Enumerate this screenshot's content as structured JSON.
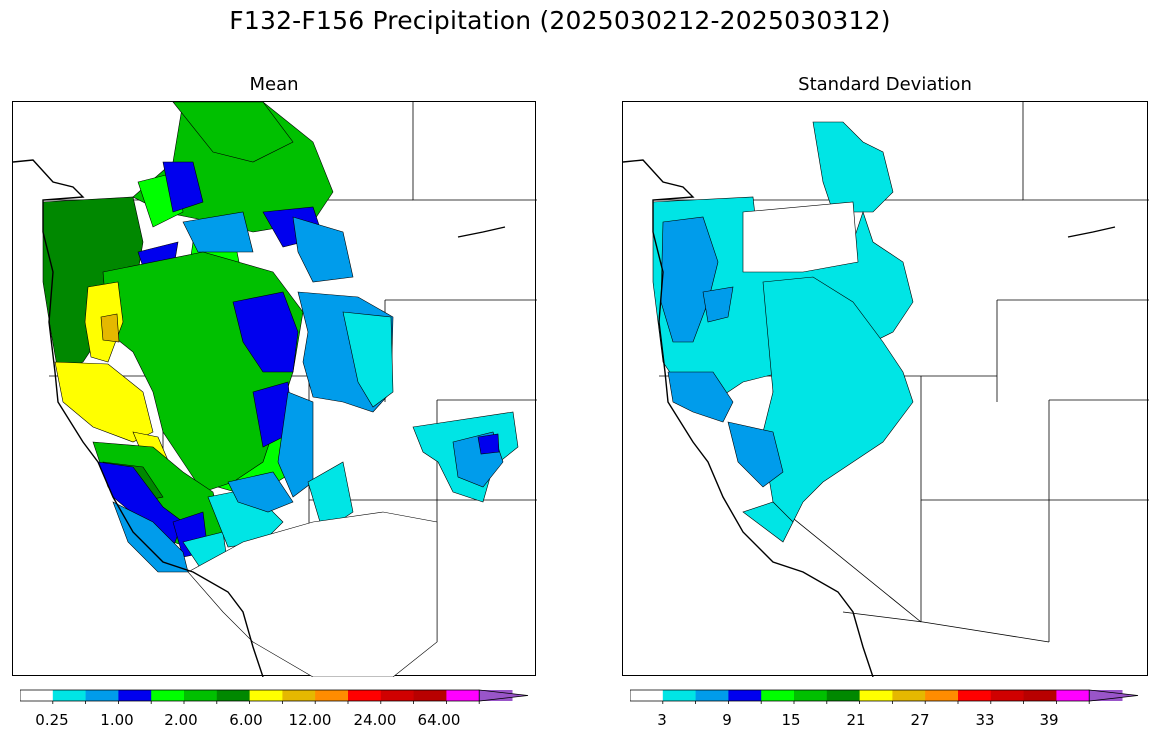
{
  "figure": {
    "title": "F132-F156 Precipitation (2025030212-2025030312)"
  },
  "panels": [
    {
      "title": "Mean",
      "colorbar": {
        "colors": [
          "#ffffff",
          "#00e5e5",
          "#009ceb",
          "#0000ee",
          "#00ff00",
          "#00c000",
          "#008800",
          "#ffff00",
          "#e5b800",
          "#ff8c00",
          "#ff0000",
          "#d00000",
          "#b80000",
          "#ff00ff",
          "#9955c9"
        ],
        "labels": [
          "0.25",
          "1.00",
          "2.00",
          "6.00",
          "12.00",
          "24.00",
          "64.00"
        ],
        "extend": "max"
      }
    },
    {
      "title": "Standard Deviation",
      "colorbar": {
        "colors": [
          "#ffffff",
          "#00e5e5",
          "#009ceb",
          "#0000ee",
          "#00ff00",
          "#00c000",
          "#008800",
          "#ffff00",
          "#e5b800",
          "#ff8c00",
          "#ff0000",
          "#d00000",
          "#b80000",
          "#ff00ff",
          "#9955c9"
        ],
        "labels": [
          "3",
          "9",
          "15",
          "21",
          "27",
          "33",
          "39"
        ],
        "extend": "max"
      }
    }
  ]
}
